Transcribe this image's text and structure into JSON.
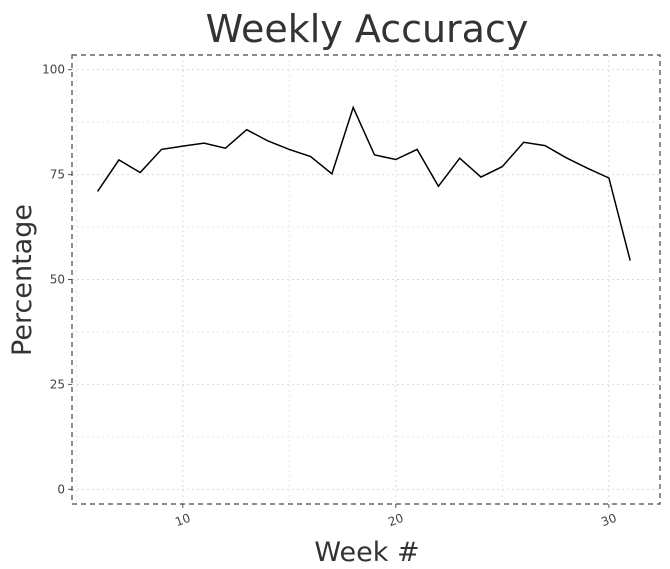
{
  "chart_data": {
    "type": "line",
    "title": "Weekly Accuracy",
    "xlabel": "Week #",
    "ylabel": "Percentage",
    "xlim": [
      4.8,
      32.4
    ],
    "ylim": [
      -3.5,
      103.5
    ],
    "xticks": [
      10,
      20,
      30
    ],
    "yticks": [
      0,
      25,
      50,
      75,
      100
    ],
    "grid": true,
    "series": [
      {
        "color": "#000000",
        "x": [
          6,
          7,
          8,
          9,
          10,
          11,
          12,
          13,
          14,
          15,
          16,
          17,
          18,
          19,
          20,
          21,
          22,
          23,
          24,
          25,
          26,
          27,
          28,
          29,
          30,
          31
        ],
        "y": [
          71,
          78.5,
          75.5,
          81,
          81.8,
          82.5,
          81.3,
          85.7,
          83,
          81,
          79.3,
          75.2,
          91,
          79.7,
          78.6,
          81,
          72.2,
          78.9,
          74.4,
          76.9,
          82.7,
          81.9,
          79,
          76.5,
          74.2,
          54.5
        ]
      }
    ]
  }
}
